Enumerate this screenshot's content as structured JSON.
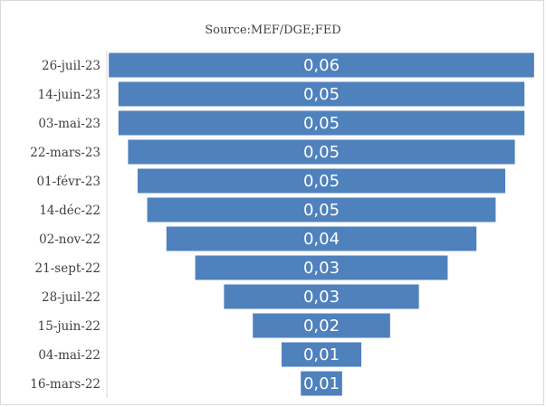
{
  "chart_data": {
    "type": "bar",
    "orientation": "horizontal",
    "style": "funnel",
    "subtitle": "Source:MEF/DGE;FED",
    "categories": [
      "26-juil-23",
      "14-juin-23",
      "03-mai-23",
      "22-mars-23",
      "01-févr-23",
      "14-déc-22",
      "02-nov-22",
      "21-sept-22",
      "28-juil-22",
      "15-juin-22",
      "04-mai-22",
      "16-mars-22"
    ],
    "values": [
      0.0555,
      0.053,
      0.053,
      0.0505,
      0.048,
      0.0455,
      0.0405,
      0.033,
      0.0255,
      0.018,
      0.0105,
      0.0055
    ],
    "labels": [
      "0,06",
      "0,05",
      "0,05",
      "0,05",
      "0,05",
      "0,05",
      "0,04",
      "0,03",
      "0,03",
      "0,02",
      "0,01",
      "0,01"
    ],
    "bar_color": "#4f81bd",
    "label_color": "#ffffff",
    "grid": false,
    "legend": "none"
  }
}
